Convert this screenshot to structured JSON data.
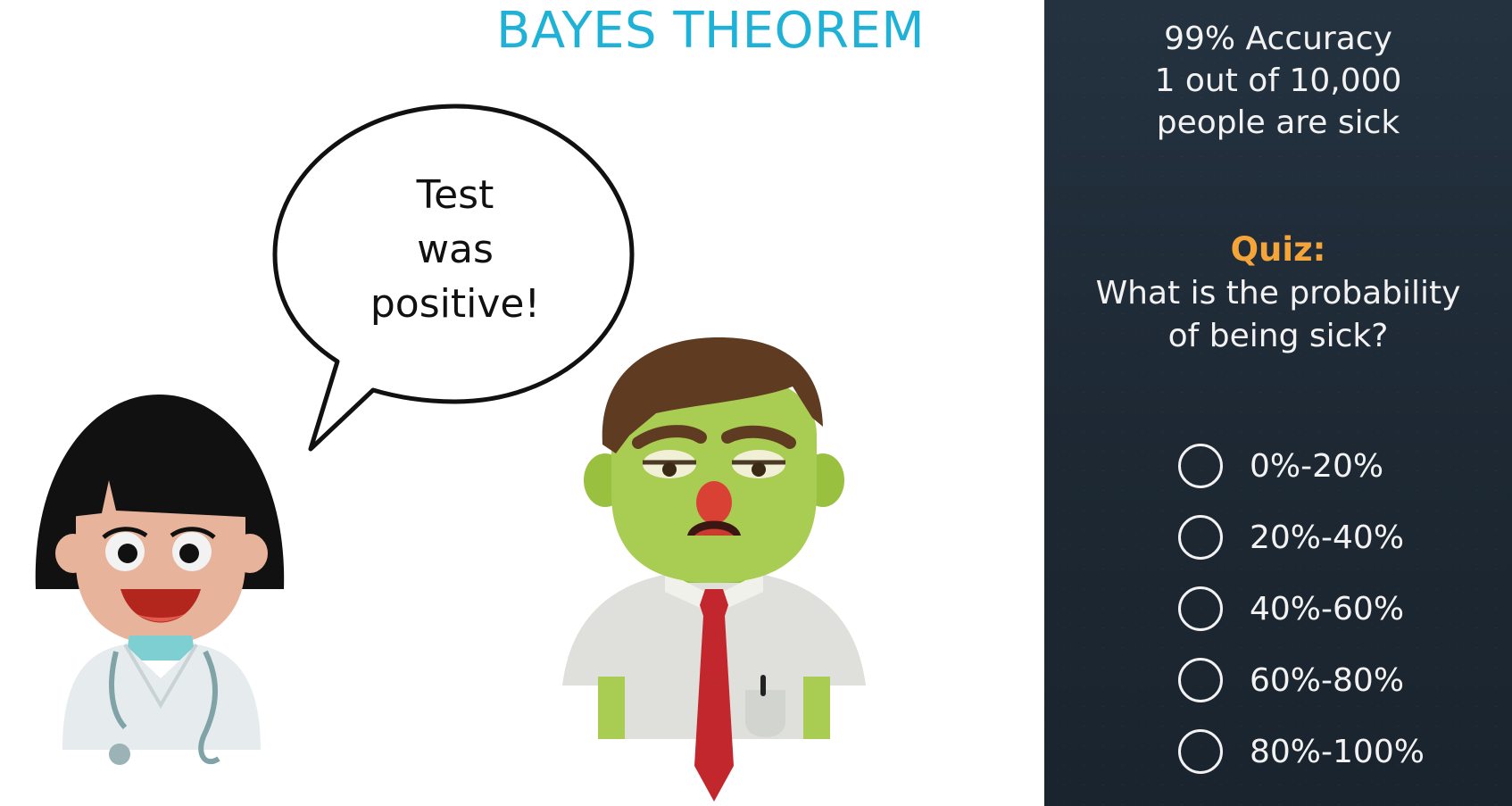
{
  "slide": {
    "title": "BAYES THEOREM",
    "speech_bubble": {
      "lines": [
        "Test",
        "was",
        "positive!"
      ]
    }
  },
  "panel": {
    "info_lines": [
      "99% Accuracy",
      "1 out of 10,000",
      "people are sick"
    ],
    "quiz_label": "Quiz:",
    "question_lines": [
      "What is the probability",
      "of being sick?"
    ],
    "options": [
      {
        "label": "0%-20%"
      },
      {
        "label": "20%-40%"
      },
      {
        "label": "40%-60%"
      },
      {
        "label": "60%-80%"
      },
      {
        "label": "80%-100%"
      }
    ]
  },
  "colors": {
    "title": "#1fb2d6",
    "quiz_label": "#f5a43a",
    "panel_bg": "#1f2b36"
  },
  "icons": [
    "doctor-character",
    "sick-patient-character",
    "speech-bubble"
  ]
}
